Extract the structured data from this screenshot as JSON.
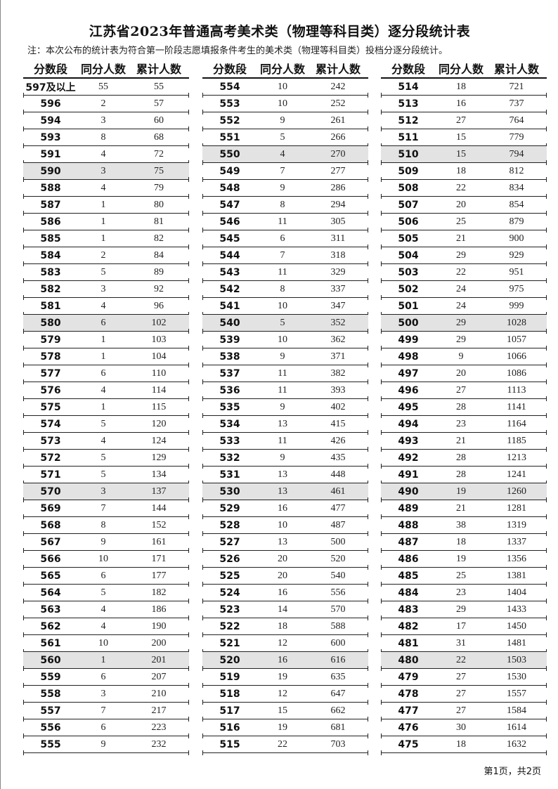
{
  "title": "江苏省2023年普通高考美术类（物理等科目类）逐分段统计表",
  "note": "注：本次公布的统计表为符合第一阶段志愿填报条件考生的美术类（物理等科目类）投档分逐分段统计。",
  "headers": {
    "score": "分数段",
    "count": "同分人数",
    "cumulative": "累计人数"
  },
  "footer": "第1页，共2页",
  "highlight_color": "#e3e3e3",
  "blocks": [
    {
      "rows": [
        [
          "597及以上",
          55,
          55
        ],
        [
          "596",
          2,
          57
        ],
        [
          "594",
          3,
          60
        ],
        [
          "593",
          8,
          68
        ],
        [
          "591",
          4,
          72
        ],
        [
          "590",
          3,
          75
        ],
        [
          "588",
          4,
          79
        ],
        [
          "587",
          1,
          80
        ],
        [
          "586",
          1,
          81
        ],
        [
          "585",
          1,
          82
        ],
        [
          "584",
          2,
          84
        ],
        [
          "583",
          5,
          89
        ],
        [
          "582",
          3,
          92
        ],
        [
          "581",
          4,
          96
        ],
        [
          "580",
          6,
          102
        ],
        [
          "579",
          1,
          103
        ],
        [
          "578",
          1,
          104
        ],
        [
          "577",
          6,
          110
        ],
        [
          "576",
          4,
          114
        ],
        [
          "575",
          1,
          115
        ],
        [
          "574",
          5,
          120
        ],
        [
          "573",
          4,
          124
        ],
        [
          "572",
          5,
          129
        ],
        [
          "571",
          5,
          134
        ],
        [
          "570",
          3,
          137
        ],
        [
          "569",
          7,
          144
        ],
        [
          "568",
          8,
          152
        ],
        [
          "567",
          9,
          161
        ],
        [
          "566",
          10,
          171
        ],
        [
          "565",
          6,
          177
        ],
        [
          "564",
          5,
          182
        ],
        [
          "563",
          4,
          186
        ],
        [
          "562",
          4,
          190
        ],
        [
          "561",
          10,
          200
        ],
        [
          "560",
          1,
          201
        ],
        [
          "559",
          6,
          207
        ],
        [
          "558",
          3,
          210
        ],
        [
          "557",
          7,
          217
        ],
        [
          "556",
          6,
          223
        ],
        [
          "555",
          9,
          232
        ]
      ],
      "highlighted": [
        "590",
        "580",
        "570",
        "560"
      ]
    },
    {
      "rows": [
        [
          "554",
          10,
          242
        ],
        [
          "553",
          10,
          252
        ],
        [
          "552",
          9,
          261
        ],
        [
          "551",
          5,
          266
        ],
        [
          "550",
          4,
          270
        ],
        [
          "549",
          7,
          277
        ],
        [
          "548",
          9,
          286
        ],
        [
          "547",
          8,
          294
        ],
        [
          "546",
          11,
          305
        ],
        [
          "545",
          6,
          311
        ],
        [
          "544",
          7,
          318
        ],
        [
          "543",
          11,
          329
        ],
        [
          "542",
          8,
          337
        ],
        [
          "541",
          10,
          347
        ],
        [
          "540",
          5,
          352
        ],
        [
          "539",
          10,
          362
        ],
        [
          "538",
          9,
          371
        ],
        [
          "537",
          11,
          382
        ],
        [
          "536",
          11,
          393
        ],
        [
          "535",
          9,
          402
        ],
        [
          "534",
          13,
          415
        ],
        [
          "533",
          11,
          426
        ],
        [
          "532",
          9,
          435
        ],
        [
          "531",
          13,
          448
        ],
        [
          "530",
          13,
          461
        ],
        [
          "529",
          16,
          477
        ],
        [
          "528",
          10,
          487
        ],
        [
          "527",
          13,
          500
        ],
        [
          "526",
          20,
          520
        ],
        [
          "525",
          20,
          540
        ],
        [
          "524",
          16,
          556
        ],
        [
          "523",
          14,
          570
        ],
        [
          "522",
          18,
          588
        ],
        [
          "521",
          12,
          600
        ],
        [
          "520",
          16,
          616
        ],
        [
          "519",
          19,
          635
        ],
        [
          "518",
          12,
          647
        ],
        [
          "517",
          15,
          662
        ],
        [
          "516",
          19,
          681
        ],
        [
          "515",
          22,
          703
        ]
      ],
      "highlighted": [
        "550",
        "540",
        "530",
        "520"
      ]
    },
    {
      "rows": [
        [
          "514",
          18,
          721
        ],
        [
          "513",
          16,
          737
        ],
        [
          "512",
          27,
          764
        ],
        [
          "511",
          15,
          779
        ],
        [
          "510",
          15,
          794
        ],
        [
          "509",
          18,
          812
        ],
        [
          "508",
          22,
          834
        ],
        [
          "507",
          20,
          854
        ],
        [
          "506",
          25,
          879
        ],
        [
          "505",
          21,
          900
        ],
        [
          "504",
          29,
          929
        ],
        [
          "503",
          22,
          951
        ],
        [
          "502",
          24,
          975
        ],
        [
          "501",
          24,
          999
        ],
        [
          "500",
          29,
          1028
        ],
        [
          "499",
          29,
          1057
        ],
        [
          "498",
          9,
          1066
        ],
        [
          "497",
          20,
          1086
        ],
        [
          "496",
          27,
          1113
        ],
        [
          "495",
          28,
          1141
        ],
        [
          "494",
          23,
          1164
        ],
        [
          "493",
          21,
          1185
        ],
        [
          "492",
          28,
          1213
        ],
        [
          "491",
          28,
          1241
        ],
        [
          "490",
          19,
          1260
        ],
        [
          "489",
          21,
          1281
        ],
        [
          "488",
          38,
          1319
        ],
        [
          "487",
          18,
          1337
        ],
        [
          "486",
          19,
          1356
        ],
        [
          "485",
          25,
          1381
        ],
        [
          "484",
          23,
          1404
        ],
        [
          "483",
          29,
          1433
        ],
        [
          "482",
          17,
          1450
        ],
        [
          "481",
          31,
          1481
        ],
        [
          "480",
          22,
          1503
        ],
        [
          "479",
          27,
          1530
        ],
        [
          "478",
          27,
          1557
        ],
        [
          "477",
          27,
          1584
        ],
        [
          "476",
          30,
          1614
        ],
        [
          "475",
          18,
          1632
        ]
      ],
      "highlighted": [
        "510",
        "500",
        "490",
        "480"
      ]
    }
  ]
}
